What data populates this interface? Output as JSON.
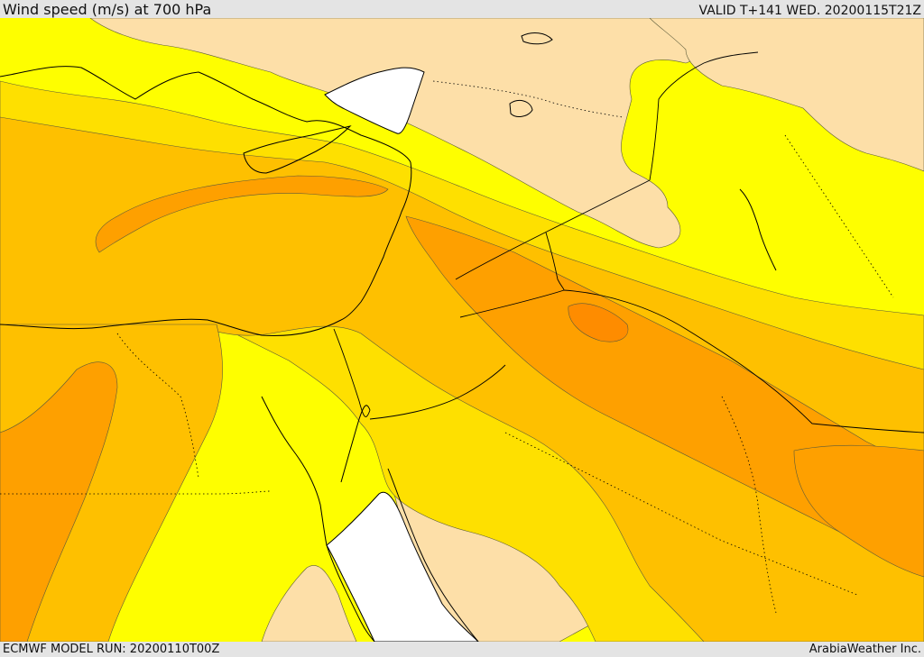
{
  "header": {
    "title": "Wind speed (m/s) at 700 hPa",
    "valid_time": "VALID T+141 WED. 20200115T21Z"
  },
  "footer": {
    "model_run": "ECMWF MODEL RUN: 20200110T00Z",
    "credit": "ArabiaWeather Inc."
  },
  "legend_colors": {
    "sea_white": "#ffffff",
    "low_wind_tan": "#fddfa8",
    "band_yellow": "#fefe00",
    "band_gold": "#fee000",
    "band_amber": "#fec000",
    "band_orange": "#fea000"
  }
}
